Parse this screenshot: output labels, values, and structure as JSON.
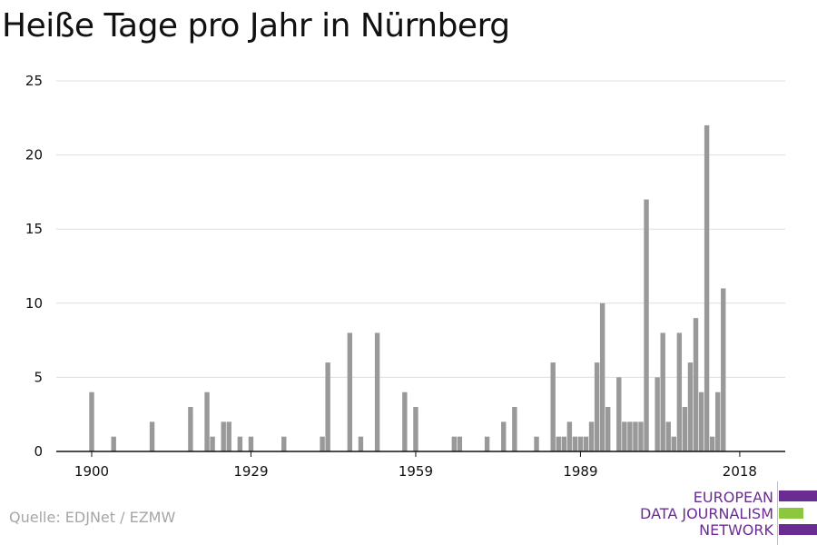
{
  "title": "Heiße Tage pro Jahr in Nürnberg",
  "source": "Quelle: EDJNet / EZMW",
  "logo": {
    "line1": "EUROPEAN",
    "line2": "DATA JOURNALISM",
    "line3": "NETWORK",
    "colors": {
      "purple": "#6a2c91",
      "green": "#8dc63f"
    }
  },
  "colors": {
    "bar": "#999999",
    "grid": "#dddddd",
    "axis": "#111111",
    "tick_text": "#111111"
  },
  "chart_data": {
    "type": "bar",
    "title": "Heiße Tage pro Jahr in Nürnberg",
    "xlabel": "",
    "ylabel": "",
    "x_ticks": [
      1900,
      1929,
      1959,
      1989,
      2018
    ],
    "y_ticks": [
      0,
      5,
      10,
      15,
      20,
      25
    ],
    "ylim": [
      0,
      25
    ],
    "xlim": [
      1894,
      2025
    ],
    "grid": true,
    "legend": "none",
    "x": [
      1900,
      1904,
      1911,
      1918,
      1921,
      1922,
      1924,
      1925,
      1927,
      1929,
      1935,
      1942,
      1943,
      1947,
      1949,
      1952,
      1957,
      1959,
      1966,
      1967,
      1972,
      1975,
      1977,
      1981,
      1984,
      1985,
      1986,
      1987,
      1988,
      1989,
      1990,
      1991,
      1992,
      1993,
      1994,
      1996,
      1997,
      1998,
      1999,
      2000,
      2001,
      2003,
      2004,
      2005,
      2006,
      2007,
      2008,
      2009,
      2010,
      2011,
      2012,
      2013,
      2014,
      2015,
      2016,
      2017,
      2018
    ],
    "values": [
      4,
      1,
      2,
      3,
      4,
      1,
      2,
      2,
      1,
      1,
      1,
      1,
      6,
      8,
      1,
      8,
      4,
      3,
      1,
      1,
      1,
      2,
      3,
      1,
      6,
      1,
      1,
      2,
      1,
      1,
      1,
      2,
      6,
      10,
      3,
      5,
      2,
      2,
      2,
      2,
      17,
      5,
      8,
      2,
      1,
      8,
      3,
      6,
      9,
      4,
      22,
      1,
      4,
      11,
      0,
      0,
      0
    ]
  }
}
